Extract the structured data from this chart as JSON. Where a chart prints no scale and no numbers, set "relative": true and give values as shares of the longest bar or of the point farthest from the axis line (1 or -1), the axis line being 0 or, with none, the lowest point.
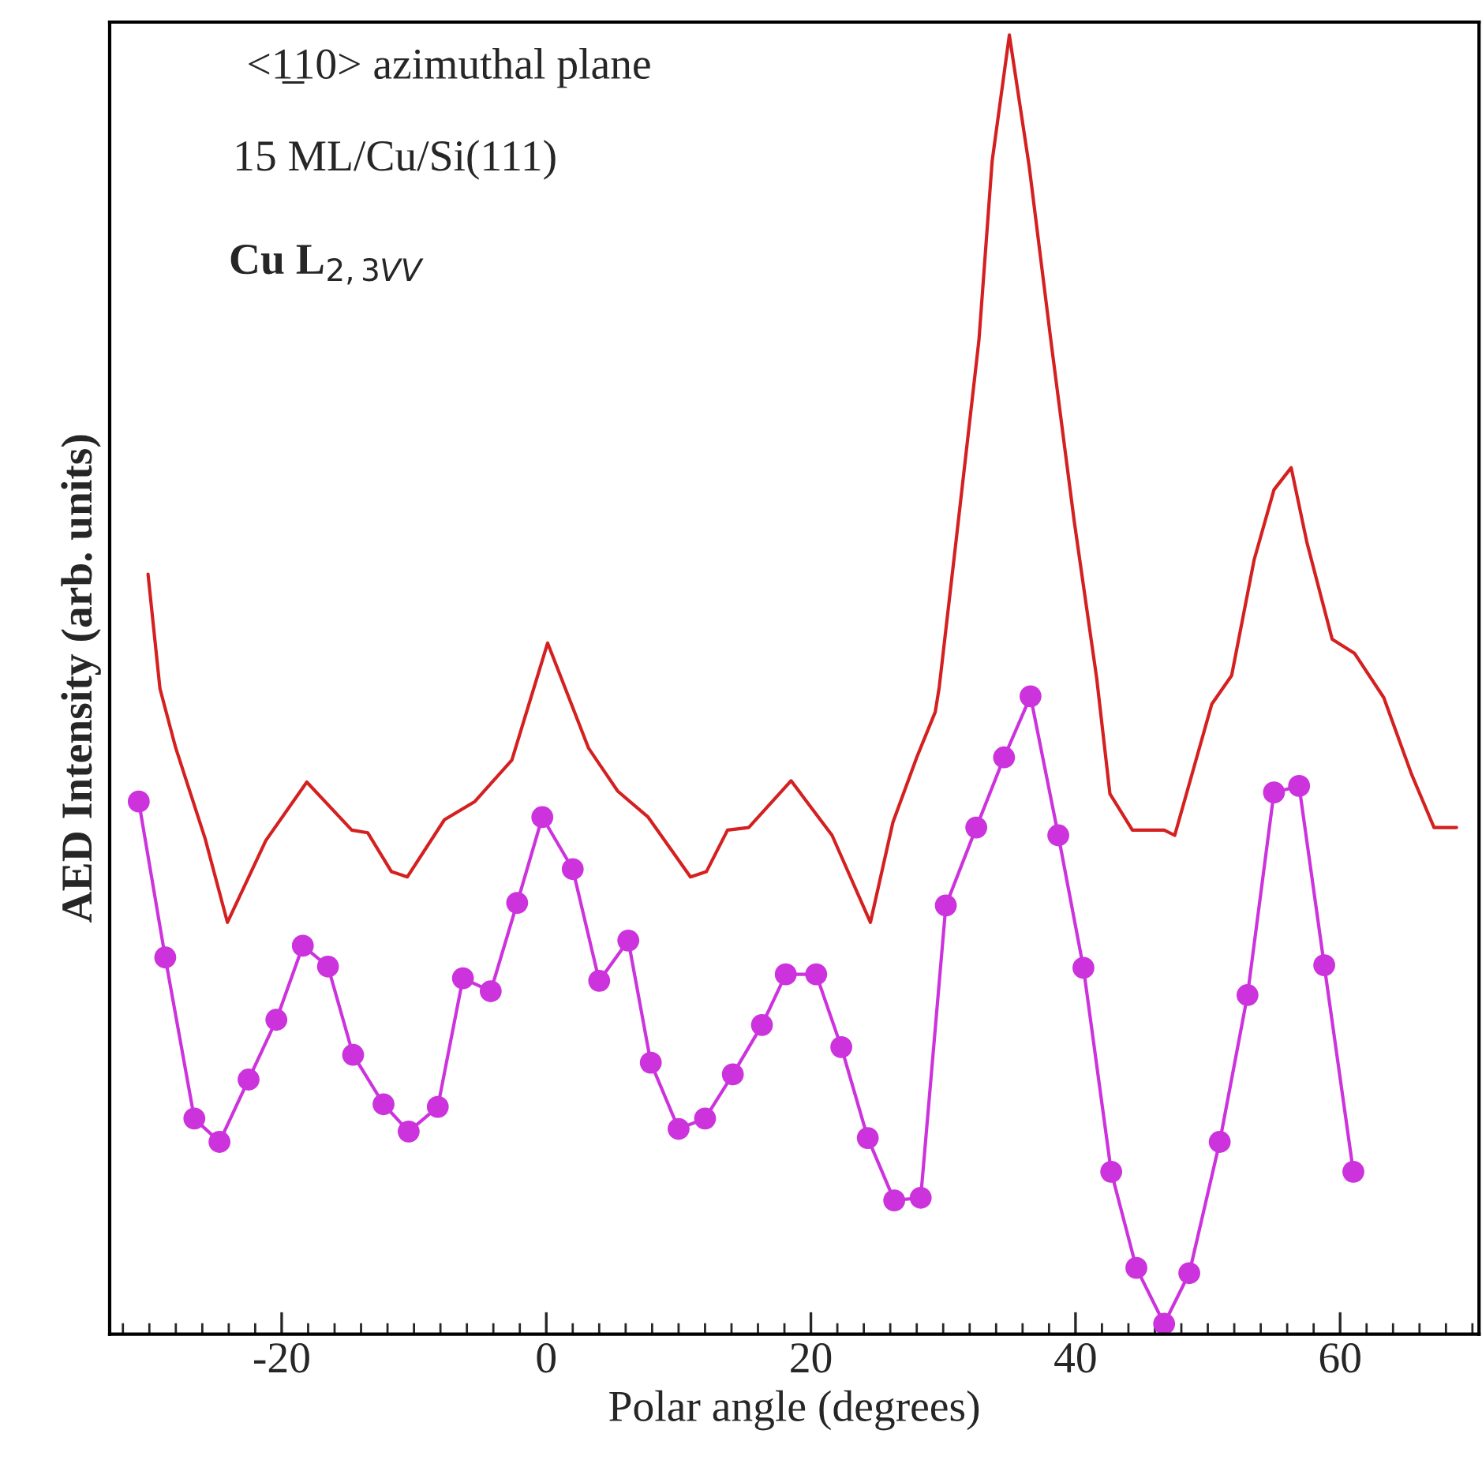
{
  "chart_data": {
    "type": "line",
    "xlabel": "Polar angle (degrees)",
    "ylabel": "AED Intensity (arb. units)",
    "annotations": [
      "<1̲10> azimuthal plane",
      "15 ML/Cu/Si(111)",
      "Cu L$_{2,3VV}$"
    ],
    "relative": true,
    "grid": false,
    "legend": false,
    "xlim": [
      -33,
      70.5
    ],
    "xticks": [
      -20,
      0,
      20,
      40,
      60
    ],
    "series": [
      {
        "color": "#d42020",
        "marker": "none",
        "x": [
          -30.1,
          -29.2,
          -28.0,
          -25.8,
          -24.1,
          -21.2,
          -18.1,
          -14.7,
          -13.5,
          -11.7,
          -10.5,
          -7.7,
          -5.4,
          -2.6,
          0.1,
          3.2,
          5.4,
          7.7,
          10.9,
          12.1,
          13.7,
          15.3,
          18.5,
          21.6,
          24.5,
          26.2,
          28.0,
          29.4,
          29.7,
          31.0,
          32.7,
          33.7,
          35.0,
          36.5,
          38.2,
          39.9,
          41.6,
          42.6,
          44.3,
          46.7,
          47.5,
          50.3,
          51.8,
          53.5,
          55.0,
          56.3,
          57.5,
          59.4,
          61.1,
          63.3,
          65.4,
          67.1,
          68.8
        ],
        "values": [
          0.585,
          0.497,
          0.451,
          0.382,
          0.317,
          0.38,
          0.425,
          0.388,
          0.386,
          0.356,
          0.352,
          0.396,
          0.41,
          0.442,
          0.532,
          0.451,
          0.418,
          0.398,
          0.352,
          0.356,
          0.388,
          0.39,
          0.426,
          0.384,
          0.317,
          0.394,
          0.444,
          0.479,
          0.498,
          0.613,
          0.765,
          0.903,
          1,
          0.899,
          0.76,
          0.626,
          0.505,
          0.416,
          0.388,
          0.388,
          0.384,
          0.485,
          0.507,
          0.596,
          0.65,
          0.667,
          0.609,
          0.535,
          0.524,
          0.49,
          0.431,
          0.39,
          0.39
        ]
      },
      {
        "color": "#cc33dd",
        "marker": "circle",
        "x": [
          -30.8,
          -28.8,
          -26.6,
          -24.7,
          -22.5,
          -20.4,
          -18.4,
          -16.5,
          -14.6,
          -12.3,
          -10.4,
          -8.2,
          -6.3,
          -4.2,
          -2.2,
          -0.3,
          2.0,
          4.0,
          6.2,
          7.9,
          10.0,
          12.0,
          14.1,
          16.3,
          18.1,
          20.4,
          22.3,
          24.3,
          26.3,
          28.3,
          30.2,
          32.5,
          34.6,
          36.6,
          38.7,
          40.6,
          42.7,
          44.6,
          46.7,
          48.6,
          50.9,
          53.0,
          55.0,
          56.9,
          58.8,
          61.0
        ],
        "values": [
          0.41,
          0.29,
          0.166,
          0.148,
          0.196,
          0.242,
          0.299,
          0.283,
          0.215,
          0.177,
          0.156,
          0.175,
          0.274,
          0.264,
          0.332,
          0.398,
          0.358,
          0.272,
          0.303,
          0.209,
          0.158,
          0.166,
          0.2,
          0.238,
          0.277,
          0.277,
          0.221,
          0.151,
          0.103,
          0.105,
          0.33,
          0.39,
          0.444,
          0.491,
          0.384,
          0.282,
          0.125,
          0.051,
          0.008,
          0.047,
          0.148,
          0.261,
          0.417,
          0.422,
          0.284,
          0.125
        ]
      }
    ]
  }
}
